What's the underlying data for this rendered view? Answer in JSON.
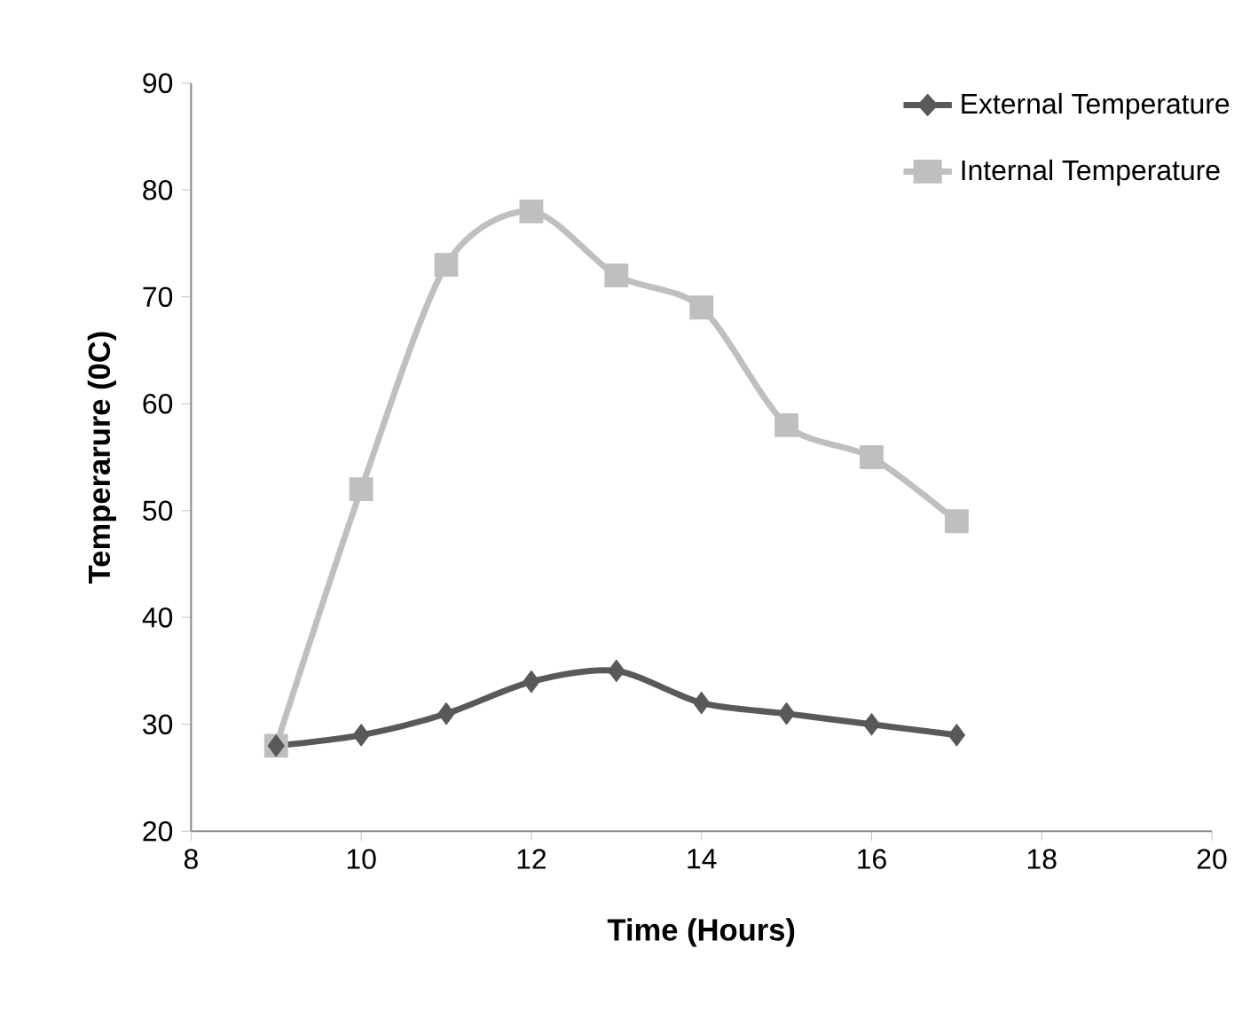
{
  "chart_data": {
    "type": "line",
    "xlabel": "Time (Hours)",
    "ylabel": "Temperarure (0C)",
    "x": [
      9,
      10,
      11,
      12,
      13,
      14,
      15,
      16,
      17
    ],
    "series": [
      {
        "name": "External Temperature",
        "color": "#595959",
        "marker": "diamond",
        "values": [
          28,
          29,
          31,
          34,
          35,
          32,
          31,
          30,
          29
        ]
      },
      {
        "name": "Internal Temperature",
        "color": "#bfbfbf",
        "marker": "square",
        "values": [
          28,
          52,
          73,
          78,
          72,
          69,
          58,
          55,
          49
        ]
      }
    ],
    "xlim": [
      8,
      20
    ],
    "ylim": [
      20,
      90
    ],
    "xticks": [
      8,
      10,
      12,
      14,
      16,
      18,
      20
    ],
    "yticks": [
      20,
      30,
      40,
      50,
      60,
      70,
      80,
      90
    ],
    "grid": false,
    "legend": "top right",
    "line_style": "solid"
  }
}
